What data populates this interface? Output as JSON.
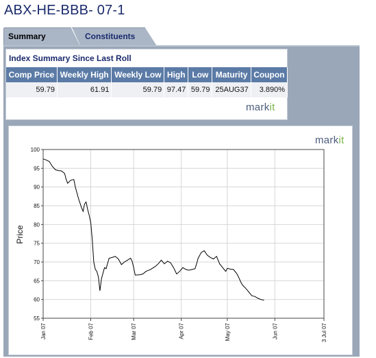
{
  "page": {
    "title": "ABX-HE-BBB- 07-1"
  },
  "tabs": [
    {
      "label": "Summary",
      "active": true
    },
    {
      "label": "Constituents",
      "active": false
    }
  ],
  "summary": {
    "heading": "Index Summary Since Last Roll",
    "columns": [
      "Comp Price",
      "Weekly High",
      "Weekly Low",
      "High",
      "Low",
      "Maturity",
      "Coupon"
    ],
    "row": [
      "59.79",
      "61.91",
      "59.79",
      "97.47",
      "59.79",
      "25AUG37",
      "3.890%"
    ]
  },
  "logos": {
    "summary_logo": {
      "part1": "mark",
      "part2": "it"
    },
    "chart_logo": {
      "part1": "mark",
      "part2": "it"
    }
  },
  "colors": {
    "title": "#1a2a6c",
    "header_bg": "#5b7ba6",
    "frame_bg": "#9aa7b8",
    "logo_green": "#7ab648"
  },
  "chart_data": {
    "type": "line",
    "title": "",
    "xlabel": "",
    "ylabel": "Price",
    "ylim": [
      55,
      100
    ],
    "yticks": [
      55,
      60,
      65,
      70,
      75,
      80,
      85,
      90,
      95,
      100
    ],
    "xlim": [
      "2007-01-01",
      "2007-07-03"
    ],
    "xticks": [
      {
        "date": "2007-01-01",
        "label": "Jan 07"
      },
      {
        "date": "2007-02-01",
        "label": "Feb 07"
      },
      {
        "date": "2007-03-01",
        "label": "Mar 07"
      },
      {
        "date": "2007-04-01",
        "label": "Apr 07"
      },
      {
        "date": "2007-05-01",
        "label": "May 07"
      },
      {
        "date": "2007-06-01",
        "label": "Jun 07"
      },
      {
        "date": "2007-07-03",
        "label": "3 Jul 07"
      }
    ],
    "grid": true,
    "series": [
      {
        "color": "#000000",
        "points": [
          [
            "2007-01-01",
            97.5
          ],
          [
            "2007-01-03",
            97.2
          ],
          [
            "2007-01-05",
            96.8
          ],
          [
            "2007-01-07",
            95.5
          ],
          [
            "2007-01-09",
            94.6
          ],
          [
            "2007-01-11",
            94.4
          ],
          [
            "2007-01-13",
            94.3
          ],
          [
            "2007-01-15",
            93.6
          ],
          [
            "2007-01-16",
            92.0
          ],
          [
            "2007-01-17",
            91.0
          ],
          [
            "2007-01-19",
            91.8
          ],
          [
            "2007-01-21",
            92.0
          ],
          [
            "2007-01-22",
            90.0
          ],
          [
            "2007-01-24",
            87.0
          ],
          [
            "2007-01-26",
            84.5
          ],
          [
            "2007-01-27",
            83.5
          ],
          [
            "2007-01-28",
            85.5
          ],
          [
            "2007-01-29",
            86.0
          ],
          [
            "2007-01-30",
            84.0
          ],
          [
            "2007-01-31",
            82.5
          ],
          [
            "2007-02-01",
            80.5
          ],
          [
            "2007-02-02",
            76.0
          ],
          [
            "2007-02-03",
            70.0
          ],
          [
            "2007-02-04",
            68.0
          ],
          [
            "2007-02-05",
            67.5
          ],
          [
            "2007-02-06",
            66.0
          ],
          [
            "2007-02-07",
            62.3
          ],
          [
            "2007-02-08",
            65.5
          ],
          [
            "2007-02-10",
            68.5
          ],
          [
            "2007-02-11",
            68.2
          ],
          [
            "2007-02-13",
            71.0
          ],
          [
            "2007-02-15",
            71.2
          ],
          [
            "2007-02-17",
            71.5
          ],
          [
            "2007-02-19",
            70.8
          ],
          [
            "2007-02-21",
            69.3
          ],
          [
            "2007-02-23",
            70.0
          ],
          [
            "2007-02-25",
            70.5
          ],
          [
            "2007-02-27",
            71.0
          ],
          [
            "2007-02-28",
            70.2
          ],
          [
            "2007-03-01",
            68.5
          ],
          [
            "2007-03-02",
            66.5
          ],
          [
            "2007-03-05",
            66.6
          ],
          [
            "2007-03-07",
            66.8
          ],
          [
            "2007-03-09",
            67.5
          ],
          [
            "2007-03-12",
            68.0
          ],
          [
            "2007-03-15",
            68.8
          ],
          [
            "2007-03-17",
            69.5
          ],
          [
            "2007-03-19",
            70.5
          ],
          [
            "2007-03-21",
            69.5
          ],
          [
            "2007-03-23",
            70.2
          ],
          [
            "2007-03-25",
            69.8
          ],
          [
            "2007-03-27",
            68.5
          ],
          [
            "2007-03-29",
            66.8
          ],
          [
            "2007-03-31",
            67.5
          ],
          [
            "2007-04-02",
            68.5
          ],
          [
            "2007-04-04",
            68.0
          ],
          [
            "2007-04-06",
            67.8
          ],
          [
            "2007-04-08",
            68.0
          ],
          [
            "2007-04-10",
            68.2
          ],
          [
            "2007-04-11",
            69.5
          ],
          [
            "2007-04-12",
            71.0
          ],
          [
            "2007-04-14",
            72.5
          ],
          [
            "2007-04-16",
            73.0
          ],
          [
            "2007-04-18",
            71.8
          ],
          [
            "2007-04-20",
            71.2
          ],
          [
            "2007-04-22",
            70.8
          ],
          [
            "2007-04-24",
            71.5
          ],
          [
            "2007-04-26",
            69.5
          ],
          [
            "2007-04-28",
            68.5
          ],
          [
            "2007-04-30",
            67.5
          ],
          [
            "2007-05-01",
            68.3
          ],
          [
            "2007-05-03",
            68.1
          ],
          [
            "2007-05-05",
            68.0
          ],
          [
            "2007-05-07",
            67.0
          ],
          [
            "2007-05-08",
            66.3
          ],
          [
            "2007-05-10",
            64.5
          ],
          [
            "2007-05-11",
            63.8
          ],
          [
            "2007-05-13",
            63.0
          ],
          [
            "2007-05-15",
            62.0
          ],
          [
            "2007-05-17",
            61.0
          ],
          [
            "2007-05-19",
            60.8
          ],
          [
            "2007-05-21",
            60.3
          ],
          [
            "2007-05-23",
            60.0
          ],
          [
            "2007-05-25",
            59.8
          ]
        ]
      }
    ]
  }
}
